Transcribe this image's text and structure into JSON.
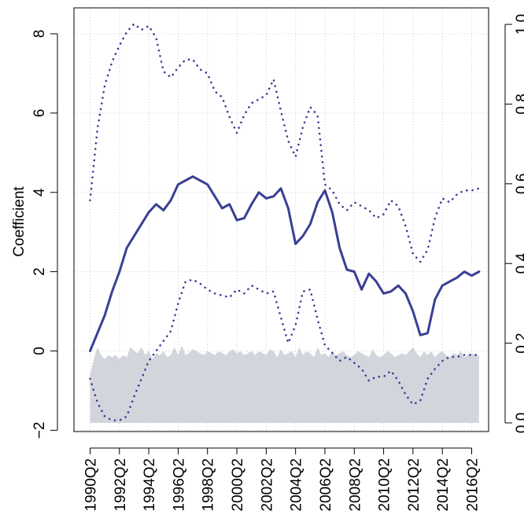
{
  "chart_data": {
    "type": "line",
    "title": "",
    "xlabel": "",
    "ylabel": "Coefficient",
    "y2label": "",
    "x_tick_labels": [
      "1990Q2",
      "1992Q2",
      "1994Q2",
      "1996Q2",
      "1998Q2",
      "2000Q2",
      "2002Q2",
      "2004Q2",
      "2006Q2",
      "2008Q2",
      "2010Q2",
      "2012Q2",
      "2014Q2",
      "2016Q2"
    ],
    "ylim": [
      -2,
      8.6
    ],
    "y_ticks": [
      -2,
      0,
      2,
      4,
      6,
      8
    ],
    "y2lim": [
      0.0,
      1.0
    ],
    "y2_ticks": [
      "0.0",
      "0.2",
      "0.4",
      "0.6",
      "0.8",
      "1.0"
    ],
    "grid": "dotted",
    "colors": {
      "line": "#3a3f94",
      "area": "#d2d5dc",
      "grid": "#cccccc",
      "axis": "#000000"
    },
    "series": [
      {
        "axis": "left",
        "style": "solid",
        "x": [
          1990.25,
          1990.75,
          1991.25,
          1991.75,
          1992.25,
          1992.75,
          1993.25,
          1993.75,
          1994.25,
          1994.75,
          1995.25,
          1995.75,
          1996.25,
          1996.75,
          1997.25,
          1997.75,
          1998.25,
          1998.75,
          1999.25,
          1999.75,
          2000.25,
          2000.75,
          2001.25,
          2001.75,
          2002.25,
          2002.75,
          2003.25,
          2003.75,
          2004.25,
          2004.75,
          2005.25,
          2005.75,
          2006.25,
          2006.75,
          2007.25,
          2007.75,
          2008.25,
          2008.75,
          2009.25,
          2009.75,
          2010.25,
          2010.75,
          2011.25,
          2011.75,
          2012.25,
          2012.75,
          2013.25,
          2013.75,
          2014.25,
          2014.75,
          2015.25,
          2015.75,
          2016.25,
          2016.75
        ],
        "values": [
          0.0,
          0.45,
          0.9,
          1.5,
          2.0,
          2.6,
          2.9,
          3.2,
          3.5,
          3.7,
          3.55,
          3.8,
          4.2,
          4.3,
          4.4,
          4.3,
          4.2,
          3.9,
          3.6,
          3.7,
          3.3,
          3.35,
          3.7,
          4.0,
          3.85,
          3.9,
          4.1,
          3.6,
          2.7,
          2.9,
          3.2,
          3.75,
          4.05,
          3.5,
          2.6,
          2.05,
          2.0,
          1.55,
          1.95,
          1.75,
          1.45,
          1.5,
          1.65,
          1.45,
          1.0,
          0.4,
          0.45,
          1.3,
          1.65,
          1.75,
          1.85,
          2.0,
          1.9,
          2.0
        ]
      },
      {
        "axis": "left",
        "style": "dotted",
        "x": [
          1990.25,
          1990.75,
          1991.25,
          1991.75,
          1992.25,
          1992.75,
          1993.25,
          1993.75,
          1994.25,
          1994.75,
          1995.25,
          1995.75,
          1996.25,
          1996.75,
          1997.25,
          1997.75,
          1998.25,
          1998.75,
          1999.25,
          1999.75,
          2000.25,
          2000.75,
          2001.25,
          2001.75,
          2002.25,
          2002.75,
          2003.25,
          2003.75,
          2004.25,
          2004.75,
          2005.25,
          2005.75,
          2006.25,
          2006.75,
          2007.25,
          2007.75,
          2008.25,
          2008.75,
          2009.25,
          2009.75,
          2010.25,
          2010.75,
          2011.25,
          2011.75,
          2012.25,
          2012.75,
          2013.25,
          2013.75,
          2014.25,
          2014.75,
          2015.25,
          2015.75,
          2016.25,
          2016.75
        ],
        "values": [
          3.8,
          5.6,
          6.7,
          7.3,
          7.7,
          8.05,
          8.25,
          8.1,
          8.2,
          7.9,
          7.05,
          6.9,
          7.15,
          7.35,
          7.35,
          7.1,
          7.0,
          6.55,
          6.4,
          5.9,
          5.5,
          5.95,
          6.25,
          6.35,
          6.45,
          6.85,
          6.05,
          5.3,
          4.9,
          5.65,
          6.15,
          5.95,
          4.2,
          4.05,
          3.7,
          3.55,
          3.75,
          3.65,
          3.55,
          3.35,
          3.45,
          3.8,
          3.65,
          3.15,
          2.45,
          2.25,
          2.55,
          3.35,
          3.85,
          3.75,
          3.95,
          4.05,
          4.05,
          4.1
        ]
      },
      {
        "axis": "left",
        "style": "dotted",
        "x": [
          1990.25,
          1990.75,
          1991.25,
          1991.75,
          1992.25,
          1992.75,
          1993.25,
          1993.75,
          1994.25,
          1994.75,
          1995.25,
          1995.75,
          1996.25,
          1996.75,
          1997.25,
          1997.75,
          1998.25,
          1998.75,
          1999.25,
          1999.75,
          2000.25,
          2000.75,
          2001.25,
          2001.75,
          2002.25,
          2002.75,
          2003.25,
          2003.75,
          2004.25,
          2004.75,
          2005.25,
          2005.75,
          2006.25,
          2006.75,
          2007.25,
          2007.75,
          2008.25,
          2008.75,
          2009.25,
          2009.75,
          2010.25,
          2010.75,
          2011.25,
          2011.75,
          2012.25,
          2012.75,
          2013.25,
          2013.75,
          2014.25,
          2014.75,
          2015.25,
          2015.75,
          2016.25,
          2016.75
        ],
        "values": [
          -0.7,
          -1.3,
          -1.65,
          -1.75,
          -1.75,
          -1.65,
          -1.15,
          -0.7,
          -0.25,
          0.0,
          0.25,
          0.5,
          1.2,
          1.75,
          1.8,
          1.7,
          1.55,
          1.45,
          1.4,
          1.35,
          1.55,
          1.45,
          1.65,
          1.55,
          1.45,
          1.5,
          0.85,
          0.2,
          0.65,
          1.5,
          1.55,
          0.8,
          0.15,
          -0.05,
          -0.25,
          -0.15,
          -0.3,
          -0.45,
          -0.75,
          -0.65,
          -0.65,
          -0.5,
          -0.75,
          -1.1,
          -1.35,
          -1.25,
          -0.7,
          -0.45,
          -0.25,
          -0.15,
          -0.15,
          -0.1,
          -0.1,
          -0.1
        ]
      },
      {
        "axis": "right",
        "style": "area",
        "x": [
          1990.25,
          1990.5,
          1990.75,
          1991.0,
          1991.25,
          1991.5,
          1991.75,
          1992.0,
          1992.25,
          1992.5,
          1992.75,
          1993.0,
          1993.25,
          1993.5,
          1993.75,
          1994.0,
          1994.25,
          1994.5,
          1994.75,
          1995.0,
          1995.25,
          1995.5,
          1995.75,
          1996.0,
          1996.25,
          1996.5,
          1996.75,
          1997.0,
          1997.25,
          1997.5,
          1997.75,
          1998.0,
          1998.25,
          1998.5,
          1998.75,
          1999.0,
          1999.25,
          1999.5,
          1999.75,
          2000.0,
          2000.25,
          2000.5,
          2000.75,
          2001.0,
          2001.25,
          2001.5,
          2001.75,
          2002.0,
          2002.25,
          2002.5,
          2002.75,
          2003.0,
          2003.25,
          2003.5,
          2003.75,
          2004.0,
          2004.25,
          2004.5,
          2004.75,
          2005.0,
          2005.25,
          2005.5,
          2005.75,
          2006.0,
          2006.25,
          2006.5,
          2006.75,
          2007.0,
          2007.25,
          2007.5,
          2007.75,
          2008.0,
          2008.25,
          2008.5,
          2008.75,
          2009.0,
          2009.25,
          2009.5,
          2009.75,
          2010.0,
          2010.25,
          2010.5,
          2010.75,
          2011.0,
          2011.25,
          2011.5,
          2011.75,
          2012.0,
          2012.25,
          2012.5,
          2012.75,
          2013.0,
          2013.25,
          2013.5,
          2013.75,
          2014.0,
          2014.25,
          2014.5,
          2014.75,
          2015.0,
          2015.25,
          2015.5,
          2015.75,
          2016.0,
          2016.25,
          2016.5,
          2016.75
        ],
        "values": [
          0.12,
          0.16,
          0.19,
          0.17,
          0.16,
          0.17,
          0.165,
          0.17,
          0.16,
          0.17,
          0.165,
          0.19,
          0.18,
          0.175,
          0.19,
          0.17,
          0.18,
          0.16,
          0.175,
          0.17,
          0.18,
          0.165,
          0.17,
          0.19,
          0.17,
          0.195,
          0.17,
          0.175,
          0.185,
          0.18,
          0.175,
          0.17,
          0.18,
          0.175,
          0.17,
          0.18,
          0.175,
          0.17,
          0.18,
          0.185,
          0.175,
          0.18,
          0.17,
          0.175,
          0.18,
          0.17,
          0.18,
          0.175,
          0.17,
          0.185,
          0.18,
          0.165,
          0.185,
          0.17,
          0.175,
          0.18,
          0.165,
          0.19,
          0.17,
          0.18,
          0.175,
          0.165,
          0.19,
          0.17,
          0.175,
          0.165,
          0.18,
          0.17,
          0.175,
          0.18,
          0.17,
          0.165,
          0.17,
          0.18,
          0.175,
          0.17,
          0.165,
          0.185,
          0.17,
          0.165,
          0.17,
          0.18,
          0.175,
          0.165,
          0.17,
          0.175,
          0.17,
          0.18,
          0.19,
          0.175,
          0.165,
          0.18,
          0.17,
          0.18,
          0.165,
          0.175,
          0.18,
          0.17,
          0.165,
          0.175,
          0.17,
          0.18,
          0.165,
          0.17,
          0.175,
          0.17,
          0.17
        ]
      }
    ]
  }
}
